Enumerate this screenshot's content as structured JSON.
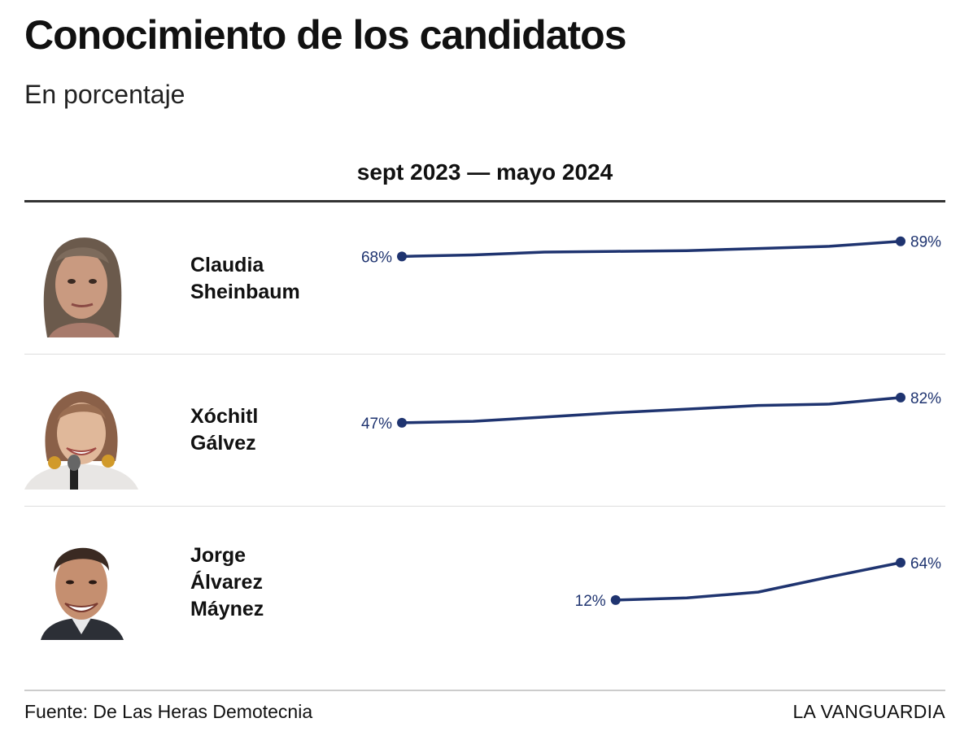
{
  "title": "Conocimiento de los candidatos",
  "subtitle": "En porcentaje",
  "period": "sept 2023 — mayo 2024",
  "source": "Fuente: De Las Heras Demotecnia",
  "brand": "LA VANGUARDIA",
  "colors": {
    "line": "#1f3470",
    "text": "#111111"
  },
  "candidates": [
    {
      "name_lines": [
        "Claudia",
        "Sheinbaum"
      ]
    },
    {
      "name_lines": [
        "Xóchitl",
        "Gálvez"
      ]
    },
    {
      "name_lines": [
        "Jorge",
        "Álvarez",
        "Máynez"
      ]
    }
  ],
  "chart_data": {
    "type": "line",
    "title": "Conocimiento de los candidatos",
    "subtitle": "En porcentaje",
    "x_range": [
      "sept 2023",
      "mayo 2024"
    ],
    "ylabel": "En porcentaje",
    "series": [
      {
        "name": "Claudia Sheinbaum",
        "values": [
          68,
          70,
          74,
          75,
          76,
          79,
          82,
          89
        ],
        "start_label": "68%",
        "end_label": "89%"
      },
      {
        "name": "Xóchitl Gálvez",
        "values": [
          47,
          49,
          55,
          61,
          66,
          71,
          73,
          82
        ],
        "start_label": "47%",
        "end_label": "82%"
      },
      {
        "name": "Jorge Álvarez Máynez",
        "values": [
          null,
          null,
          null,
          12,
          15,
          23,
          44,
          64
        ],
        "start_label": "12%",
        "end_label": "64%"
      }
    ]
  }
}
